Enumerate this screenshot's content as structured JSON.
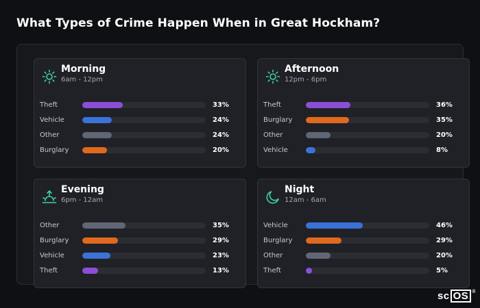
{
  "title": "What Types of Crime Happen When in Great Hockham?",
  "colors": {
    "Theft": "#8b4fd6",
    "Vehicle": "#3a72d8",
    "Other": "#5f6777",
    "Burglary": "#e0691e",
    "icon_accent": "#3fd1a8"
  },
  "cards": [
    {
      "name": "Morning",
      "time": "6am - 12pm",
      "icon": "sun-icon",
      "rows": [
        {
          "label": "Theft",
          "value": 33,
          "pct": "33%"
        },
        {
          "label": "Vehicle",
          "value": 24,
          "pct": "24%"
        },
        {
          "label": "Other",
          "value": 24,
          "pct": "24%"
        },
        {
          "label": "Burglary",
          "value": 20,
          "pct": "20%"
        }
      ]
    },
    {
      "name": "Afternoon",
      "time": "12pm - 6pm",
      "icon": "sun-icon",
      "rows": [
        {
          "label": "Theft",
          "value": 36,
          "pct": "36%"
        },
        {
          "label": "Burglary",
          "value": 35,
          "pct": "35%"
        },
        {
          "label": "Other",
          "value": 20,
          "pct": "20%"
        },
        {
          "label": "Vehicle",
          "value": 8,
          "pct": "8%"
        }
      ]
    },
    {
      "name": "Evening",
      "time": "6pm - 12am",
      "icon": "sunset-icon",
      "rows": [
        {
          "label": "Other",
          "value": 35,
          "pct": "35%"
        },
        {
          "label": "Burglary",
          "value": 29,
          "pct": "29%"
        },
        {
          "label": "Vehicle",
          "value": 23,
          "pct": "23%"
        },
        {
          "label": "Theft",
          "value": 13,
          "pct": "13%"
        }
      ]
    },
    {
      "name": "Night",
      "time": "12am - 6am",
      "icon": "moon-icon",
      "rows": [
        {
          "label": "Vehicle",
          "value": 46,
          "pct": "46%"
        },
        {
          "label": "Burglary",
          "value": 29,
          "pct": "29%"
        },
        {
          "label": "Other",
          "value": 20,
          "pct": "20%"
        },
        {
          "label": "Theft",
          "value": 5,
          "pct": "5%"
        }
      ]
    }
  ],
  "logo": {
    "text_a": "sc",
    "text_b": "OS",
    "reg": "®"
  }
}
